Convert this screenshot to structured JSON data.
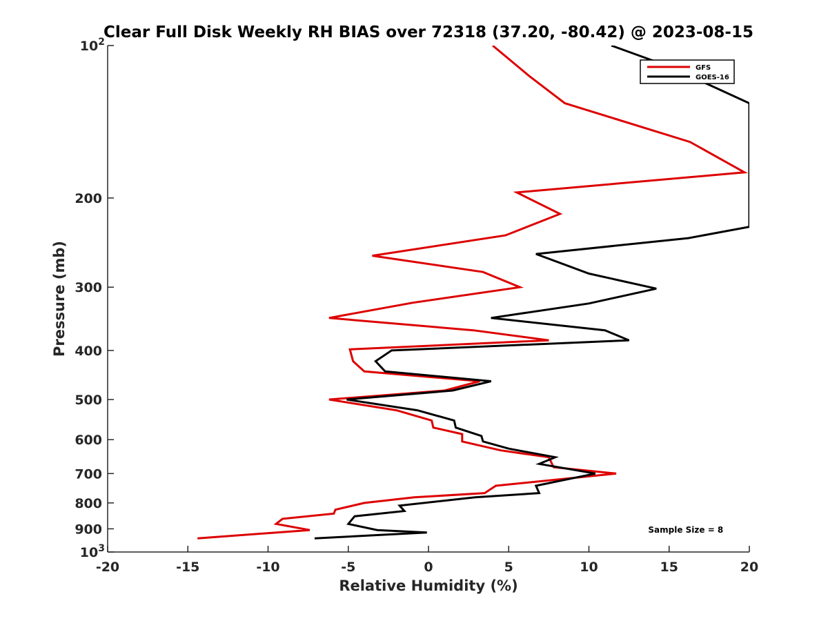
{
  "chart_data": {
    "type": "line",
    "title": "Clear Full Disk Weekly RH BIAS over 72318 (37.20, -80.42) @ 2023-08-15",
    "xlabel": "Relative Humidity (%)",
    "ylabel": "Pressure (mb)",
    "xlim": [
      -20,
      20
    ],
    "ylim": [
      100,
      1000
    ],
    "y_scale": "log",
    "y_reversed": true,
    "x_ticks": [
      -20,
      -15,
      -10,
      -5,
      0,
      5,
      10,
      15,
      20
    ],
    "y_ticks": [
      {
        "value": 100,
        "base": "10",
        "exp": "2"
      },
      {
        "value": 200,
        "label": "200"
      },
      {
        "value": 300,
        "label": "300"
      },
      {
        "value": 400,
        "label": "400"
      },
      {
        "value": 500,
        "label": "500"
      },
      {
        "value": 600,
        "label": "600"
      },
      {
        "value": 700,
        "label": "700"
      },
      {
        "value": 800,
        "label": "800"
      },
      {
        "value": 900,
        "label": "900"
      },
      {
        "value": 1000,
        "base": "10",
        "exp": "3"
      }
    ],
    "grid": false,
    "legend_position": "top-right",
    "series": [
      {
        "name": "GFS",
        "color": "#dd0000",
        "points": [
          [
            4.0,
            100
          ],
          [
            6.3,
            115
          ],
          [
            8.5,
            130
          ],
          [
            16.3,
            155
          ],
          [
            19.7,
            178
          ],
          [
            5.5,
            195
          ],
          [
            8.2,
            215
          ],
          [
            4.8,
            237
          ],
          [
            -3.5,
            260
          ],
          [
            3.4,
            280
          ],
          [
            5.7,
            300
          ],
          [
            -1.0,
            322
          ],
          [
            -6.2,
            345
          ],
          [
            2.8,
            365
          ],
          [
            7.5,
            382
          ],
          [
            -4.9,
            398
          ],
          [
            -4.7,
            420
          ],
          [
            -4.0,
            440
          ],
          [
            3.2,
            460
          ],
          [
            1.0,
            480
          ],
          [
            -6.2,
            500
          ],
          [
            -2.0,
            525
          ],
          [
            0.2,
            550
          ],
          [
            0.3,
            568
          ],
          [
            2.1,
            585
          ],
          [
            2.1,
            605
          ],
          [
            4.5,
            630
          ],
          [
            7.5,
            650
          ],
          [
            7.8,
            680
          ],
          [
            11.7,
            700
          ],
          [
            4.2,
            740
          ],
          [
            3.5,
            765
          ],
          [
            -0.9,
            780
          ],
          [
            -4.0,
            800
          ],
          [
            -5.8,
            825
          ],
          [
            -5.9,
            840
          ],
          [
            -9.1,
            860
          ],
          [
            -9.5,
            880
          ],
          [
            -7.4,
            905
          ],
          [
            -14.4,
            940
          ]
        ]
      },
      {
        "name": "GOES-16",
        "color": "#000000",
        "points": [
          [
            11.4,
            100
          ],
          [
            15.0,
            110
          ],
          [
            20.0,
            130
          ],
          [
            20.0,
            228
          ],
          [
            16.2,
            240
          ],
          [
            6.7,
            258
          ],
          [
            10.0,
            282
          ],
          [
            14.2,
            302
          ],
          [
            10.0,
            323
          ],
          [
            3.9,
            345
          ],
          [
            11.0,
            365
          ],
          [
            12.5,
            382
          ],
          [
            -2.3,
            400
          ],
          [
            -3.3,
            420
          ],
          [
            -2.7,
            440
          ],
          [
            3.9,
            460
          ],
          [
            1.5,
            480
          ],
          [
            -5.1,
            500
          ],
          [
            -0.7,
            525
          ],
          [
            1.6,
            550
          ],
          [
            1.7,
            568
          ],
          [
            3.3,
            590
          ],
          [
            3.4,
            605
          ],
          [
            5.0,
            625
          ],
          [
            7.9,
            650
          ],
          [
            6.9,
            670
          ],
          [
            10.4,
            700
          ],
          [
            6.7,
            740
          ],
          [
            6.9,
            765
          ],
          [
            2.9,
            780
          ],
          [
            -1.8,
            810
          ],
          [
            -1.5,
            830
          ],
          [
            -4.6,
            850
          ],
          [
            -5.0,
            880
          ],
          [
            -3.2,
            905
          ],
          [
            -0.1,
            915
          ],
          [
            -7.1,
            940
          ]
        ]
      }
    ],
    "annotations": [
      {
        "text": "Sample Size = 8",
        "x": 15.5,
        "y": 905
      }
    ]
  }
}
